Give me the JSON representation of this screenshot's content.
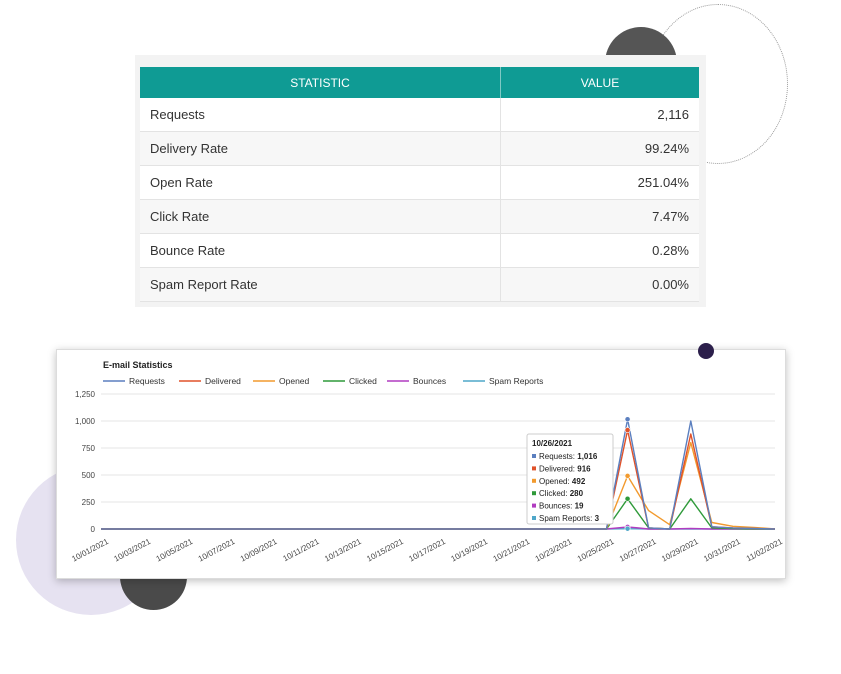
{
  "stats_table": {
    "headers": {
      "statistic": "STATISTIC",
      "value": "VALUE"
    },
    "rows": [
      {
        "label": "Requests",
        "value": "2,116"
      },
      {
        "label": "Delivery Rate",
        "value": "99.24%"
      },
      {
        "label": "Open Rate",
        "value": "251.04%"
      },
      {
        "label": "Click Rate",
        "value": "7.47%"
      },
      {
        "label": "Bounce Rate",
        "value": "0.28%"
      },
      {
        "label": "Spam Report Rate",
        "value": "0.00%"
      }
    ],
    "header_color": "#0f9b94"
  },
  "chart_data": {
    "type": "line",
    "title": "E-mail Statistics",
    "x": [
      "10/01/2021",
      "10/02/2021",
      "10/03/2021",
      "10/04/2021",
      "10/05/2021",
      "10/06/2021",
      "10/07/2021",
      "10/08/2021",
      "10/09/2021",
      "10/10/2021",
      "10/11/2021",
      "10/12/2021",
      "10/13/2021",
      "10/14/2021",
      "10/15/2021",
      "10/16/2021",
      "10/17/2021",
      "10/18/2021",
      "10/19/2021",
      "10/20/2021",
      "10/21/2021",
      "10/22/2021",
      "10/23/2021",
      "10/24/2021",
      "10/25/2021",
      "10/26/2021",
      "10/27/2021",
      "10/28/2021",
      "10/29/2021",
      "10/30/2021",
      "10/31/2021",
      "11/01/2021",
      "11/02/2021"
    ],
    "x_tick_labels": [
      "10/01/2021",
      "10/03/2021",
      "10/05/2021",
      "10/07/2021",
      "10/09/2021",
      "10/11/2021",
      "10/13/2021",
      "10/15/2021",
      "10/17/2021",
      "10/19/2021",
      "10/21/2021",
      "10/23/2021",
      "10/25/2021",
      "10/27/2021",
      "10/29/2021",
      "10/31/2021",
      "11/02/2021"
    ],
    "y_ticks": [
      "0",
      "250",
      "500",
      "750",
      "1,000",
      "1,250"
    ],
    "ylim": [
      0,
      1250
    ],
    "grid": true,
    "legend_position": "top",
    "series": [
      {
        "name": "Requests",
        "color": "#5b7fbf",
        "values": [
          0,
          0,
          0,
          0,
          0,
          0,
          0,
          0,
          0,
          0,
          0,
          0,
          0,
          0,
          0,
          0,
          0,
          0,
          0,
          0,
          0,
          0,
          0,
          0,
          0,
          1016,
          10,
          0,
          1000,
          20,
          10,
          5,
          0
        ]
      },
      {
        "name": "Delivered",
        "color": "#e0522a",
        "values": [
          0,
          0,
          0,
          0,
          0,
          0,
          0,
          0,
          0,
          0,
          0,
          0,
          0,
          0,
          0,
          0,
          0,
          0,
          0,
          0,
          0,
          0,
          0,
          0,
          0,
          916,
          10,
          0,
          880,
          20,
          10,
          5,
          0
        ]
      },
      {
        "name": "Opened",
        "color": "#f29a2e",
        "values": [
          0,
          0,
          0,
          0,
          0,
          0,
          0,
          0,
          0,
          0,
          0,
          0,
          0,
          0,
          0,
          0,
          0,
          0,
          0,
          0,
          0,
          0,
          0,
          0,
          0,
          492,
          170,
          40,
          800,
          60,
          25,
          15,
          0
        ]
      },
      {
        "name": "Clicked",
        "color": "#2f9a3a",
        "values": [
          0,
          0,
          0,
          0,
          0,
          0,
          0,
          0,
          0,
          0,
          0,
          0,
          0,
          0,
          0,
          0,
          0,
          0,
          0,
          0,
          0,
          0,
          0,
          0,
          0,
          280,
          10,
          0,
          280,
          10,
          5,
          0,
          0
        ]
      },
      {
        "name": "Bounces",
        "color": "#b13cc0",
        "values": [
          0,
          0,
          0,
          0,
          0,
          0,
          0,
          0,
          0,
          0,
          0,
          0,
          0,
          0,
          0,
          0,
          0,
          0,
          0,
          0,
          0,
          0,
          0,
          0,
          0,
          19,
          0,
          0,
          5,
          0,
          0,
          0,
          0
        ]
      },
      {
        "name": "Spam Reports",
        "color": "#4fa7c9",
        "values": [
          0,
          0,
          0,
          0,
          0,
          0,
          0,
          0,
          0,
          0,
          0,
          0,
          0,
          0,
          0,
          0,
          0,
          0,
          0,
          0,
          0,
          0,
          0,
          0,
          0,
          3,
          0,
          0,
          0,
          0,
          0,
          0,
          0
        ]
      }
    ],
    "tooltip": {
      "date": "10/26/2021",
      "rows": [
        {
          "label": "Requests:",
          "value": "1,016"
        },
        {
          "label": "Delivered:",
          "value": "916"
        },
        {
          "label": "Opened:",
          "value": "492"
        },
        {
          "label": "Clicked:",
          "value": "280"
        },
        {
          "label": "Bounces:",
          "value": "19"
        },
        {
          "label": "Spam Reports:",
          "value": "3"
        }
      ]
    }
  }
}
